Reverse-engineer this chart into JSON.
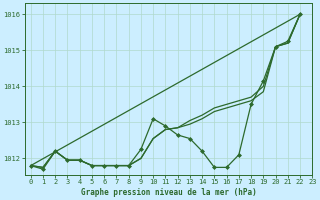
{
  "title": "Graphe pression niveau de la mer (hPa)",
  "background_color": "#cceeff",
  "grid_color": "#b0d9cc",
  "line_color": "#2d6a2d",
  "xlim": [
    -0.5,
    23
  ],
  "ylim": [
    1011.55,
    1016.3
  ],
  "yticks": [
    1012,
    1013,
    1014,
    1015,
    1016
  ],
  "xticks": [
    0,
    1,
    2,
    3,
    4,
    5,
    6,
    7,
    8,
    9,
    10,
    11,
    12,
    13,
    14,
    15,
    16,
    17,
    18,
    19,
    20,
    21,
    22,
    23
  ],
  "straight_line_x": [
    0,
    22
  ],
  "straight_line_y": [
    1011.8,
    1016.0
  ],
  "line2_x": [
    0,
    1,
    2,
    3,
    4,
    5,
    6,
    7,
    8,
    9,
    10,
    11,
    12,
    13,
    14,
    15,
    16,
    17,
    18,
    19,
    20,
    21,
    22
  ],
  "line2_y": [
    1011.8,
    1011.75,
    1012.2,
    1011.95,
    1011.95,
    1011.8,
    1011.8,
    1011.8,
    1011.8,
    1012.0,
    1012.55,
    1012.8,
    1012.85,
    1013.05,
    1013.2,
    1013.4,
    1013.5,
    1013.6,
    1013.7,
    1014.0,
    1015.1,
    1015.2,
    1016.0
  ],
  "line3_x": [
    0,
    1,
    2,
    3,
    4,
    5,
    6,
    7,
    8,
    9,
    10,
    11,
    12,
    13,
    14,
    15,
    16,
    17,
    18,
    19,
    20,
    21,
    22
  ],
  "line3_y": [
    1011.8,
    1011.75,
    1012.2,
    1011.95,
    1011.95,
    1011.8,
    1011.8,
    1011.8,
    1011.8,
    1012.0,
    1012.55,
    1012.8,
    1012.85,
    1012.95,
    1013.1,
    1013.3,
    1013.4,
    1013.5,
    1013.6,
    1013.85,
    1015.1,
    1015.2,
    1016.0
  ],
  "main_series_x": [
    0,
    1,
    2,
    3,
    4,
    5,
    6,
    7,
    8,
    9,
    10,
    11,
    12,
    13,
    14,
    15,
    16,
    17,
    18,
    19,
    20,
    21,
    22
  ],
  "main_series_y": [
    1011.8,
    1011.7,
    1012.2,
    1011.95,
    1011.95,
    1011.8,
    1011.8,
    1011.8,
    1011.8,
    1012.25,
    1013.1,
    1012.9,
    1012.65,
    1012.55,
    1012.2,
    1011.75,
    1011.75,
    1012.1,
    1013.5,
    1014.15,
    1015.1,
    1015.25,
    1016.0
  ]
}
